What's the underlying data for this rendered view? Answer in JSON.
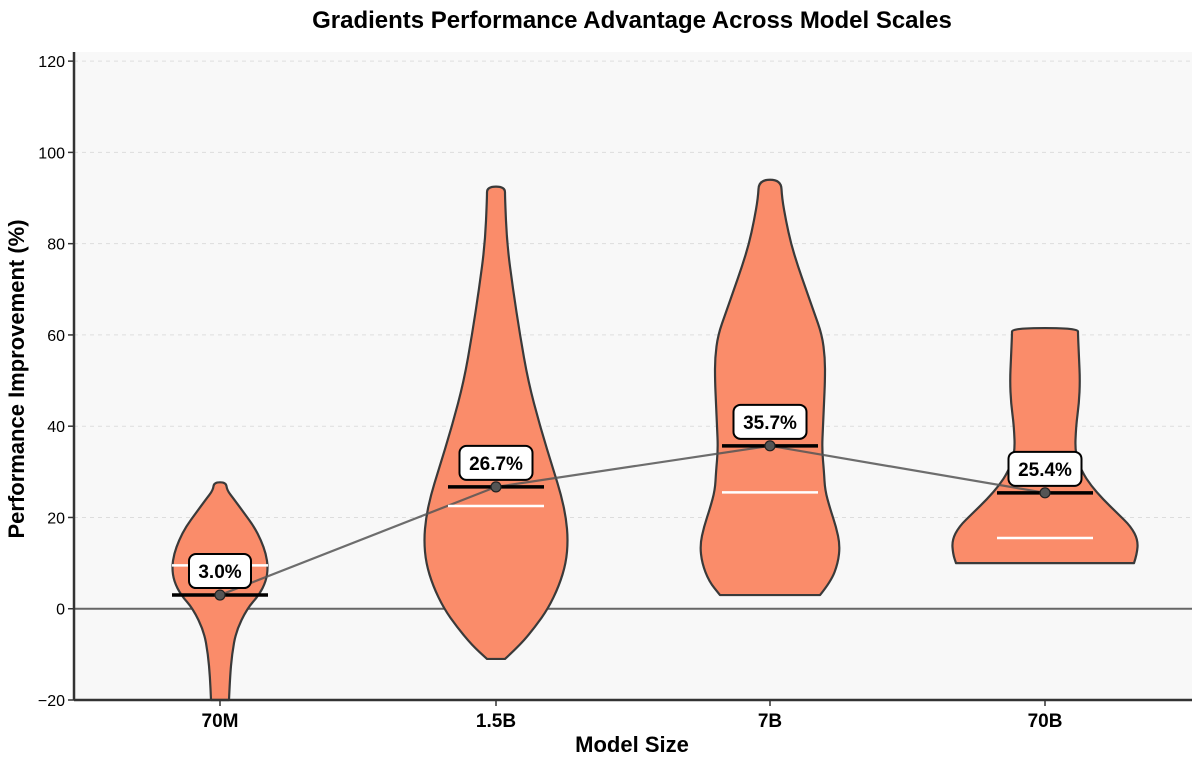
{
  "chart_data": {
    "type": "violin",
    "title": "Gradients Performance Advantage Across Model Scales",
    "xlabel": "Model Size",
    "ylabel": "Performance Improvement (%)",
    "ylim": [
      -20,
      122
    ],
    "yticks": [
      -20,
      0,
      20,
      40,
      60,
      80,
      100,
      120
    ],
    "ytick_labels": [
      "−20",
      "0",
      "20",
      "40",
      "60",
      "80",
      "100",
      "120"
    ],
    "grid": "horizontal dashed",
    "background": "#f8f8f8",
    "categories": [
      "70M",
      "1.5B",
      "7B",
      "70B"
    ],
    "mean_values": [
      3.0,
      26.7,
      35.7,
      25.4
    ],
    "median_values": [
      9.5,
      22.5,
      25.5,
      15.5
    ],
    "annotations": [
      "3.0%",
      "26.7%",
      "35.7%",
      "25.4%"
    ],
    "violins": [
      {
        "category": "70M",
        "min": -20,
        "max": 27.7,
        "profile": [
          [
            -20,
            9
          ],
          [
            -15,
            10
          ],
          [
            -10,
            12
          ],
          [
            -5,
            16
          ],
          [
            0,
            27
          ],
          [
            3,
            39
          ],
          [
            6,
            46
          ],
          [
            9,
            48
          ],
          [
            12,
            46
          ],
          [
            15,
            41
          ],
          [
            18,
            34
          ],
          [
            21,
            24
          ],
          [
            24,
            14
          ],
          [
            26,
            7
          ],
          [
            27.7,
            6
          ]
        ]
      },
      {
        "category": "1.5B",
        "min": -11,
        "max": 92.5,
        "profile": [
          [
            -11,
            9
          ],
          [
            -8,
            24
          ],
          [
            -4,
            39
          ],
          [
            0,
            52
          ],
          [
            5,
            63
          ],
          [
            10,
            70
          ],
          [
            15,
            72
          ],
          [
            20,
            70
          ],
          [
            25,
            65
          ],
          [
            30,
            58
          ],
          [
            40,
            44
          ],
          [
            50,
            32
          ],
          [
            60,
            24
          ],
          [
            70,
            17
          ],
          [
            80,
            11
          ],
          [
            90,
            9
          ],
          [
            92.5,
            9
          ]
        ]
      },
      {
        "category": "7B",
        "min": 3,
        "max": 94,
        "profile": [
          [
            3,
            50
          ],
          [
            6,
            61
          ],
          [
            10,
            68
          ],
          [
            14,
            70
          ],
          [
            18,
            66
          ],
          [
            22,
            60
          ],
          [
            26,
            55
          ],
          [
            30,
            54
          ],
          [
            35,
            52
          ],
          [
            40,
            53
          ],
          [
            45,
            54
          ],
          [
            50,
            55
          ],
          [
            55,
            55
          ],
          [
            60,
            52
          ],
          [
            65,
            44
          ],
          [
            70,
            36
          ],
          [
            75,
            28
          ],
          [
            80,
            21
          ],
          [
            85,
            16
          ],
          [
            90,
            12
          ],
          [
            94,
            11
          ]
        ]
      },
      {
        "category": "70B",
        "min": 10,
        "max": 61.5,
        "profile": [
          [
            10,
            89
          ],
          [
            12,
            92
          ],
          [
            15,
            93
          ],
          [
            18,
            86
          ],
          [
            21,
            72
          ],
          [
            24,
            58
          ],
          [
            27,
            46
          ],
          [
            30,
            37
          ],
          [
            34,
            30
          ],
          [
            40,
            31
          ],
          [
            45,
            34
          ],
          [
            50,
            35
          ],
          [
            55,
            34
          ],
          [
            60,
            33
          ],
          [
            61.5,
            33
          ]
        ]
      }
    ],
    "colors": {
      "violin_fill": "#fa8c6a",
      "violin_stroke": "#3a3a3a",
      "mean_line": "#000000",
      "median_line": "#ffffff",
      "trend_line": "#555555",
      "zero_line": "#666666",
      "grid": "#dddddd"
    }
  }
}
